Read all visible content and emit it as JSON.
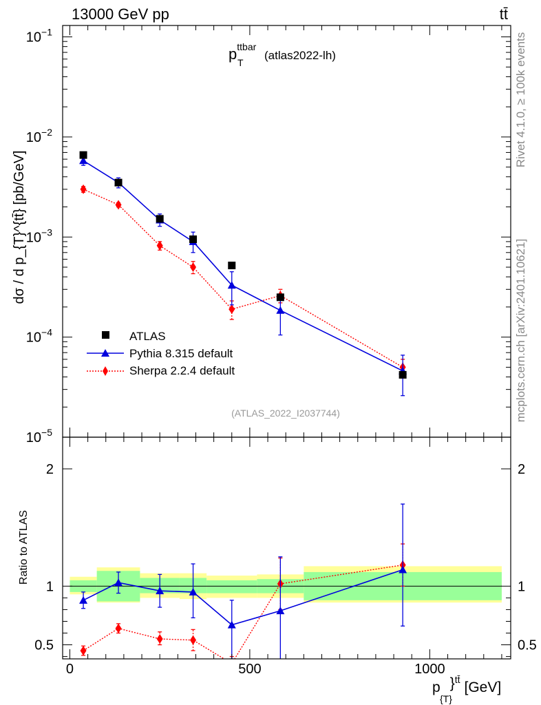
{
  "header": {
    "energy_label": "13000 GeV pp",
    "process_label": "tt̄"
  },
  "side_labels": {
    "rivet": "Rivet 4.1.0, ≥ 100k events",
    "mcplots": "mcplots.cern.ch [arXiv:2401.10621]"
  },
  "chart_data": [
    {
      "type": "scatter",
      "panel": "main",
      "title_main": "p",
      "title_sup": "ttbar",
      "title_sub": "T",
      "title_suffix": "(atlas2022-lh)",
      "analysis_id": "(ATLAS_2022_I2037744)",
      "ylabel": "dσ / d p_{T}^{tt̄} [pb/GeV]",
      "yscale": "log",
      "ylim": [
        1e-05,
        0.13
      ],
      "xlim": [
        -20,
        1225
      ],
      "ytick_labels": [
        {
          "base": "10",
          "exp": "−1",
          "value": 0.1
        },
        {
          "base": "10",
          "exp": "−2",
          "value": 0.01
        },
        {
          "base": "10",
          "exp": "−3",
          "value": 0.001
        },
        {
          "base": "10",
          "exp": "−4",
          "value": 0.0001
        },
        {
          "base": "10",
          "exp": "−5",
          "value": 1e-05
        }
      ],
      "legend": {
        "position": "lower-left",
        "entries": [
          "ATLAS",
          "Pythia 8.315 default",
          "Sherpa 2.2.4 default"
        ]
      },
      "series": [
        {
          "name": "ATLAS",
          "marker": "square",
          "color": "#000000",
          "x": [
            37.5,
            135,
            250,
            342.5,
            450,
            585,
            925
          ],
          "xerr": [
            37.5,
            60,
            55,
            37.5,
            70,
            65,
            275
          ],
          "y": [
            0.0066,
            0.0035,
            0.00152,
            0.00095,
            0.00052,
            0.00025,
            4.2e-05
          ],
          "yerr_lo": [
            0.0002,
            0.0001,
            5e-05,
            4e-05,
            2e-05,
            1.2e-05,
            1.5e-06
          ],
          "yerr_hi": [
            0.0002,
            0.0001,
            5e-05,
            4e-05,
            2e-05,
            1.2e-05,
            1.5e-06
          ]
        },
        {
          "name": "Pythia 8.315 default",
          "marker": "triangle",
          "color": "#0000dd",
          "line": "solid",
          "x": [
            37.5,
            135,
            250,
            342.5,
            450,
            585,
            925
          ],
          "y": [
            0.0058,
            0.0035,
            0.00148,
            0.0009,
            0.00033,
            0.000185,
            4.6e-05
          ],
          "yerr_lo": [
            0.0006,
            0.0004,
            0.0002,
            0.0002,
            0.00012,
            8e-05,
            2e-05
          ],
          "yerr_hi": [
            0.0006,
            0.0004,
            0.00022,
            0.00022,
            0.00012,
            8e-05,
            2e-05
          ]
        },
        {
          "name": "Sherpa 2.2.4 default",
          "marker": "diamond",
          "color": "#ff0000",
          "line": "dotted",
          "x": [
            37.5,
            135,
            250,
            342.5,
            450,
            585,
            925
          ],
          "y": [
            0.003,
            0.0021,
            0.00082,
            0.0005,
            0.00019,
            0.00026,
            5e-05
          ],
          "yerr_lo": [
            0.0002,
            0.0001,
            8e-05,
            7e-05,
            4e-05,
            4e-05,
            1e-05
          ],
          "yerr_hi": [
            0.0002,
            0.0001,
            8e-05,
            7e-05,
            4e-05,
            4e-05,
            1e-05
          ]
        }
      ]
    },
    {
      "type": "scatter",
      "panel": "ratio",
      "ylabel": "Ratio to ATLAS",
      "xlabel_main": "p",
      "xlabel_sub": "{T}",
      "xlabel_sup": "}",
      "xlabel_sup2": "tt̄",
      "xlabel_unit": "[GeV]",
      "ylim": [
        0.38,
        2.27
      ],
      "ytick_labels": [
        "0.5",
        "1",
        "2"
      ],
      "ytick_values": [
        0.5,
        1,
        2
      ],
      "xtick_labels": [
        "0",
        "500",
        "1000"
      ],
      "xtick_values": [
        0,
        500,
        1000
      ],
      "reference_line": 1,
      "uncertainty_bands": {
        "x_edges": [
          0,
          75,
          195,
          305,
          380,
          520,
          650,
          1200
        ],
        "inner_lo": [
          0.95,
          0.87,
          0.94,
          0.94,
          0.94,
          0.94,
          0.88
        ],
        "inner_hi": [
          1.05,
          1.13,
          1.07,
          1.07,
          1.05,
          1.06,
          1.12
        ],
        "outer_lo": [
          0.93,
          0.86,
          0.9,
          0.89,
          0.9,
          0.9,
          0.86
        ],
        "outer_hi": [
          1.08,
          1.16,
          1.11,
          1.11,
          1.09,
          1.1,
          1.17
        ],
        "inner_color": "#99ff99",
        "outer_color": "#ffff99"
      },
      "series": [
        {
          "name": "Pythia 8.315 default",
          "color": "#0000dd",
          "marker": "triangle",
          "line": "solid",
          "x": [
            37.5,
            135,
            250,
            342.5,
            450,
            585,
            925
          ],
          "y": [
            0.88,
            1.03,
            0.96,
            0.95,
            0.67,
            0.79,
            1.14
          ],
          "yerr_lo": [
            0.07,
            0.09,
            0.14,
            0.22,
            0.29,
            0.42,
            0.48
          ],
          "yerr_hi": [
            0.07,
            0.09,
            0.14,
            0.24,
            0.21,
            0.46,
            0.56
          ]
        },
        {
          "name": "Sherpa 2.2.4 default",
          "color": "#ff0000",
          "marker": "diamond",
          "line": "dotted",
          "x": [
            37.5,
            135,
            250,
            342.5,
            450,
            585,
            925
          ],
          "y": [
            0.45,
            0.64,
            0.55,
            0.54,
            0.34,
            1.02,
            1.18
          ],
          "yerr_lo": [
            0.04,
            0.04,
            0.05,
            0.09,
            0.06,
            0.22,
            0.18
          ],
          "yerr_hi": [
            0.04,
            0.04,
            0.06,
            0.09,
            0.06,
            0.22,
            0.18
          ]
        }
      ]
    }
  ]
}
